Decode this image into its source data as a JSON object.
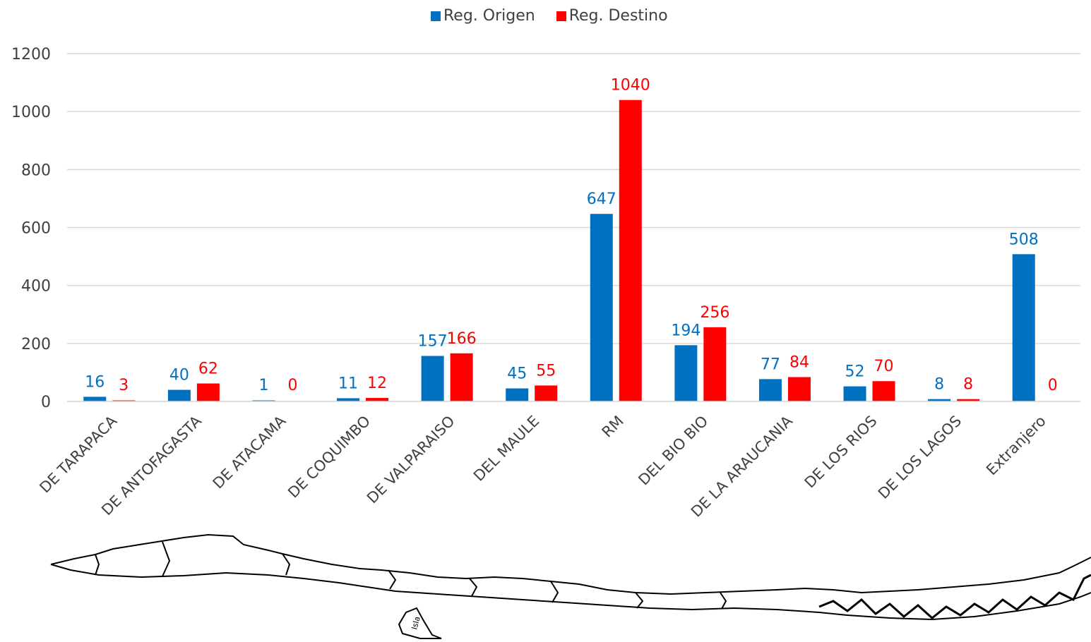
{
  "chart_data": {
    "type": "bar",
    "categories": [
      "DE TARAPACA",
      "DE ANTOFAGASTA",
      "DE ATACAMA",
      "DE COQUIMBO",
      "DE VALPARAISO",
      "DEL MAULE",
      "RM",
      "DEL BIO BIO",
      "DE LA ARAUCANIA",
      "DE LOS RIOS",
      "DE LOS LAGOS",
      "Extranjero"
    ],
    "series": [
      {
        "name": "Reg. Origen",
        "color": "#0070C0",
        "values": [
          16,
          40,
          1,
          11,
          157,
          45,
          647,
          194,
          77,
          52,
          8,
          508
        ]
      },
      {
        "name": "Reg. Destino",
        "color": "#FF0000",
        "values": [
          3,
          62,
          0,
          12,
          166,
          55,
          1040,
          256,
          84,
          70,
          8,
          0
        ]
      }
    ],
    "ylim": [
      0,
      1200
    ],
    "yticks": [
      0,
      200,
      400,
      600,
      800,
      1000,
      1200
    ],
    "grid": true,
    "legend_position": "top-center",
    "data_labels": true
  },
  "map": {
    "island_label": "Isla"
  }
}
